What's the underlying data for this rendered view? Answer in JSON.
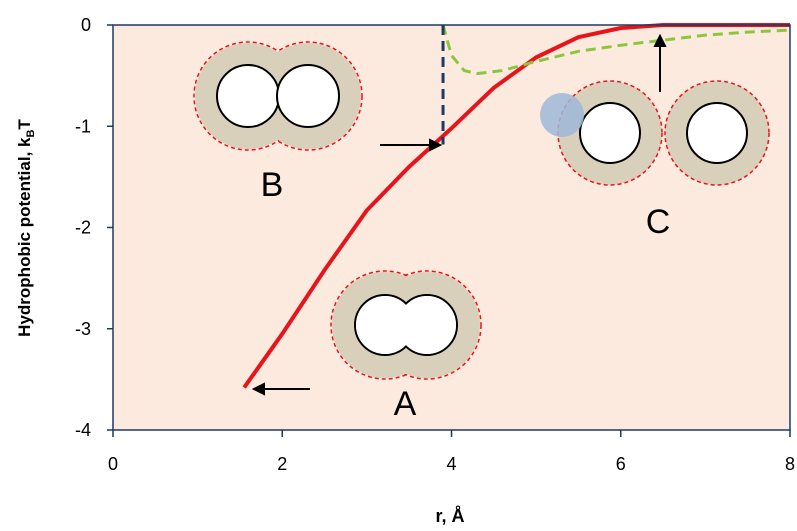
{
  "chart_data": {
    "type": "line",
    "y_label": [
      "Hydrophobic potential, k",
      "B",
      "T"
    ],
    "x_label": "r, Å",
    "xlim": [
      0,
      8
    ],
    "xticks": [
      0,
      2,
      4,
      6,
      8
    ],
    "ylim": [
      -4,
      0
    ],
    "yticks": [
      0,
      -1,
      -2,
      -3,
      -4
    ],
    "grid": false,
    "series": [
      {
        "color": "#e8141b",
        "dash": false,
        "x": [
          1.55,
          2,
          2.5,
          3,
          3.5,
          4,
          4.5,
          5,
          5.5,
          6,
          6.5,
          7,
          8
        ],
        "values": [
          -3.58,
          -3.05,
          -2.42,
          -1.83,
          -1.4,
          -1.02,
          -0.62,
          -0.32,
          -0.12,
          -0.03,
          0,
          0,
          0
        ]
      },
      {
        "color": "#8cc63f",
        "dash": true,
        "x": [
          3.9,
          4.0,
          4.15,
          4.3,
          4.6,
          5,
          5.5,
          6,
          6.5,
          7,
          7.5,
          8
        ],
        "values": [
          0,
          -0.3,
          -0.45,
          -0.48,
          -0.45,
          -0.36,
          -0.26,
          -0.2,
          -0.15,
          -0.1,
          -0.07,
          -0.05
        ]
      },
      {
        "color": "#1f3864",
        "dash": true,
        "x": [
          3.9,
          3.9
        ],
        "values": [
          0,
          -1.18
        ]
      }
    ],
    "annotations": [
      "A",
      "B",
      "C"
    ]
  }
}
